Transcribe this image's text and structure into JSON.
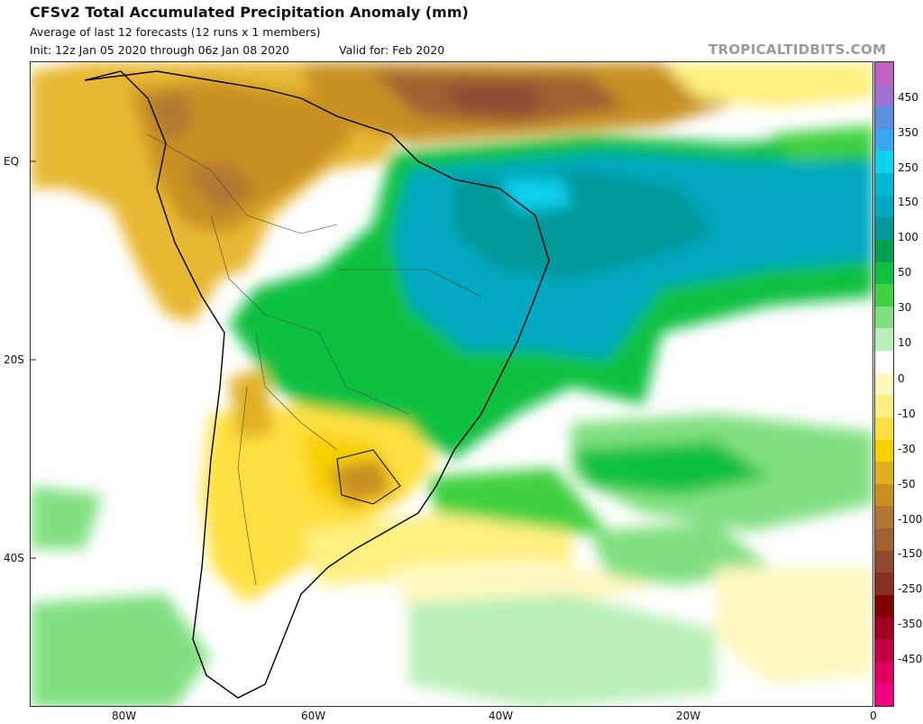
{
  "header": {
    "title": "CFSv2 Total Accumulated Precipitation Anomaly (mm)",
    "subtitle": "Average of last 12 forecasts (12 runs x 1 members)",
    "init": "Init: 12z Jan 05 2020 through 06z Jan 08 2020",
    "valid": "Valid for: Feb 2020",
    "watermark": "TROPICALTIDBITS.COM"
  },
  "map": {
    "latitude_labels": [
      "EQ",
      "20S",
      "40S"
    ],
    "longitude_labels": [
      "80W",
      "60W",
      "40W",
      "20W",
      "0"
    ]
  },
  "colorbar": {
    "colors": [
      "#c060c0",
      "#a070d0",
      "#5a8fe0",
      "#3aa6f0",
      "#10d0f0",
      "#00b8d8",
      "#00a8c0",
      "#009898",
      "#00a050",
      "#10c040",
      "#40d040",
      "#80e080",
      "#b8f0b8",
      "#ffffff",
      "#fff8c0",
      "#fff080",
      "#ffe040",
      "#f8d000",
      "#e0b020",
      "#c89020",
      "#b07830",
      "#a06030",
      "#904830",
      "#883020",
      "#800000",
      "#a00020",
      "#c00040",
      "#e00060",
      "#f00080"
    ],
    "labels": [
      "450",
      "350",
      "250",
      "150",
      "100",
      "50",
      "30",
      "10",
      "0",
      "-10",
      "-30",
      "-50",
      "-100",
      "-150",
      "-250",
      "-350",
      "-450"
    ]
  }
}
